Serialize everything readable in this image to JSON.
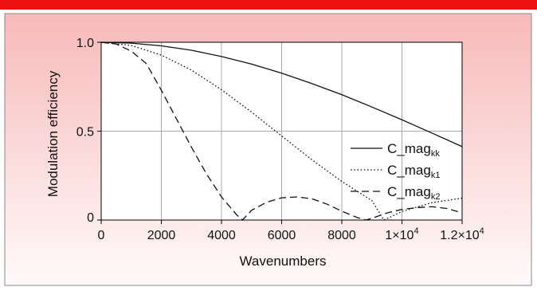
{
  "chart_data": {
    "type": "line",
    "title": "",
    "xlabel": "Wavenumbers",
    "ylabel": "Modulation efficiency",
    "xlim": [
      0,
      12000
    ],
    "ylim": [
      0,
      1.0
    ],
    "grid": true,
    "legend_position": "right",
    "x_ticks": [
      {
        "value": 0,
        "label": "0"
      },
      {
        "value": 2000,
        "label": "2000"
      },
      {
        "value": 4000,
        "label": "4000"
      },
      {
        "value": 6000,
        "label": "6000"
      },
      {
        "value": 8000,
        "label": "8000"
      },
      {
        "value": 10000,
        "base": "1×10",
        "exp": "4"
      },
      {
        "value": 12000,
        "base": "1.2×10",
        "exp": "4"
      }
    ],
    "y_ticks": [
      {
        "value": 0,
        "label": "0"
      },
      {
        "value": 0.5,
        "label": "0.5"
      },
      {
        "value": 1.0,
        "label": "1.0"
      }
    ],
    "series": [
      {
        "base": "C_mag",
        "sub": "kk",
        "style": "solid",
        "x": [
          0,
          1000,
          2000,
          3000,
          4000,
          5000,
          6000,
          7000,
          8000,
          9000,
          10000,
          11000,
          12000
        ],
        "y": [
          1.0,
          0.995,
          0.98,
          0.955,
          0.92,
          0.877,
          0.826,
          0.768,
          0.705,
          0.636,
          0.564,
          0.489,
          0.413
        ]
      },
      {
        "base": "C_mag",
        "sub": "k1",
        "style": "dotted",
        "x": [
          0,
          1000,
          2000,
          3000,
          4000,
          5000,
          6000,
          7000,
          8000,
          9000,
          9400,
          10000,
          11000,
          12000
        ],
        "y": [
          1.0,
          0.982,
          0.928,
          0.843,
          0.733,
          0.607,
          0.473,
          0.34,
          0.217,
          0.11,
          0.0,
          0.048,
          0.098,
          0.123
        ]
      },
      {
        "base": "C_mag",
        "sub": "k2",
        "style": "dashed",
        "x": [
          0,
          500,
          1000,
          1500,
          2000,
          2500,
          3000,
          3500,
          4000,
          4500,
          4700,
          5000,
          5500,
          6000,
          6500,
          7000,
          7500,
          8000,
          8500,
          8800,
          9000,
          9500,
          10000,
          10500,
          11000,
          11500,
          12000
        ],
        "y": [
          1.0,
          0.99,
          0.95,
          0.88,
          0.73,
          0.57,
          0.41,
          0.26,
          0.13,
          0.03,
          0.0,
          0.055,
          0.1,
          0.125,
          0.13,
          0.12,
          0.09,
          0.05,
          0.015,
          0.0,
          0.01,
          0.04,
          0.06,
          0.07,
          0.075,
          0.065,
          0.04
        ]
      }
    ]
  },
  "colors": {
    "top_bar": "#ee1111",
    "background_top": "#f7b9b9",
    "background_bottom": "#fffafa",
    "plot_bg": "#ffffff",
    "grid": "#a8a8a8",
    "line": "#111111"
  }
}
